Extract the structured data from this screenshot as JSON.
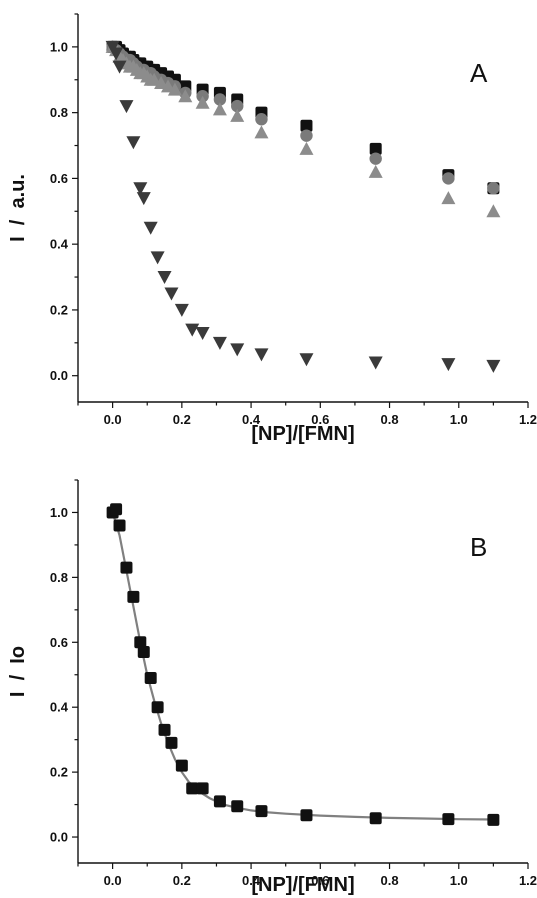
{
  "chart_data": [
    {
      "type": "scatter",
      "panel_label": "A",
      "xlabel": "[NP]/[FMN]",
      "ylabel": "I  /  a.u.",
      "xlim": [
        -0.1,
        1.2
      ],
      "ylim": [
        -0.08,
        1.1
      ],
      "xticks": [
        0.0,
        0.2,
        0.4,
        0.6,
        0.8,
        1.0,
        1.2
      ],
      "xtick_labels": [
        "0.0",
        "0.2",
        "0.4",
        "0.6",
        "0.8",
        "1.0",
        "1.2"
      ],
      "yticks": [
        0.0,
        0.2,
        0.4,
        0.6,
        0.8,
        1.0
      ],
      "ytick_labels": [
        "0.0",
        "0.2",
        "0.4",
        "0.6",
        "0.8",
        "1.0"
      ],
      "grid": false,
      "series": [
        {
          "marker": "square",
          "color": "#111111",
          "x": [
            0.0,
            0.01,
            0.02,
            0.03,
            0.04,
            0.05,
            0.06,
            0.07,
            0.08,
            0.09,
            0.1,
            0.11,
            0.12,
            0.14,
            0.16,
            0.18,
            0.21,
            0.26,
            0.31,
            0.36,
            0.43,
            0.56,
            0.76,
            0.97,
            1.1
          ],
          "y": [
            1.0,
            1.0,
            0.99,
            0.98,
            0.97,
            0.97,
            0.96,
            0.95,
            0.95,
            0.94,
            0.94,
            0.93,
            0.93,
            0.92,
            0.91,
            0.9,
            0.88,
            0.87,
            0.86,
            0.84,
            0.8,
            0.76,
            0.69,
            0.61,
            0.57
          ]
        },
        {
          "marker": "circle",
          "color": "#7a7a7a",
          "x": [
            0.0,
            0.01,
            0.02,
            0.03,
            0.04,
            0.05,
            0.06,
            0.07,
            0.08,
            0.09,
            0.1,
            0.11,
            0.12,
            0.14,
            0.16,
            0.18,
            0.21,
            0.26,
            0.31,
            0.36,
            0.43,
            0.56,
            0.76,
            0.97,
            1.1
          ],
          "y": [
            1.0,
            0.99,
            0.98,
            0.97,
            0.96,
            0.96,
            0.95,
            0.94,
            0.93,
            0.93,
            0.92,
            0.92,
            0.91,
            0.9,
            0.89,
            0.88,
            0.86,
            0.85,
            0.84,
            0.82,
            0.78,
            0.73,
            0.66,
            0.6,
            0.57
          ]
        },
        {
          "marker": "triangle-up",
          "color": "#8c8c8c",
          "x": [
            0.0,
            0.01,
            0.02,
            0.03,
            0.04,
            0.05,
            0.06,
            0.07,
            0.08,
            0.09,
            0.1,
            0.11,
            0.12,
            0.14,
            0.16,
            0.18,
            0.21,
            0.26,
            0.31,
            0.36,
            0.43,
            0.56,
            0.76,
            0.97,
            1.1
          ],
          "y": [
            1.0,
            0.99,
            0.97,
            0.96,
            0.95,
            0.94,
            0.94,
            0.93,
            0.92,
            0.92,
            0.91,
            0.9,
            0.9,
            0.89,
            0.88,
            0.87,
            0.85,
            0.83,
            0.81,
            0.79,
            0.74,
            0.69,
            0.62,
            0.54,
            0.5
          ]
        },
        {
          "marker": "triangle-down",
          "color": "#3a3a3a",
          "x": [
            0.0,
            0.01,
            0.02,
            0.04,
            0.06,
            0.08,
            0.09,
            0.11,
            0.13,
            0.15,
            0.17,
            0.2,
            0.23,
            0.26,
            0.31,
            0.36,
            0.43,
            0.56,
            0.76,
            0.97,
            1.1
          ],
          "y": [
            1.0,
            0.98,
            0.94,
            0.82,
            0.71,
            0.57,
            0.54,
            0.45,
            0.36,
            0.3,
            0.25,
            0.2,
            0.14,
            0.13,
            0.1,
            0.08,
            0.065,
            0.05,
            0.04,
            0.035,
            0.03
          ]
        }
      ]
    },
    {
      "type": "scatter",
      "panel_label": "B",
      "xlabel": "[NP]/[FMN]",
      "ylabel": "I  /  Io",
      "xlim": [
        -0.1,
        1.2
      ],
      "ylim": [
        -0.08,
        1.1
      ],
      "xticks": [
        0.0,
        0.2,
        0.4,
        0.6,
        0.8,
        1.0,
        1.2
      ],
      "xtick_labels": [
        "0.0",
        "0.2",
        "0.4",
        "0.6",
        "0.8",
        "1.0",
        "1.2"
      ],
      "yticks": [
        0.0,
        0.2,
        0.4,
        0.6,
        0.8,
        1.0
      ],
      "ytick_labels": [
        "0.0",
        "0.2",
        "0.4",
        "0.6",
        "0.8",
        "1.0"
      ],
      "grid": false,
      "series": [
        {
          "marker": "square",
          "color": "#111111",
          "x": [
            0.0,
            0.01,
            0.02,
            0.04,
            0.06,
            0.08,
            0.09,
            0.11,
            0.13,
            0.15,
            0.17,
            0.2,
            0.23,
            0.26,
            0.31,
            0.36,
            0.43,
            0.56,
            0.76,
            0.97,
            1.1
          ],
          "y": [
            1.0,
            1.01,
            0.96,
            0.83,
            0.74,
            0.6,
            0.57,
            0.49,
            0.4,
            0.33,
            0.29,
            0.22,
            0.15,
            0.15,
            0.11,
            0.095,
            0.08,
            0.067,
            0.058,
            0.055,
            0.053
          ]
        },
        {
          "type": "line",
          "color": "#808080",
          "x": [
            0.0,
            0.02,
            0.04,
            0.06,
            0.08,
            0.1,
            0.12,
            0.14,
            0.16,
            0.18,
            0.2,
            0.22,
            0.25,
            0.28,
            0.32,
            0.36,
            0.4,
            0.45,
            0.5,
            0.6,
            0.7,
            0.8,
            0.9,
            1.0,
            1.1
          ],
          "y": [
            1.0,
            0.93,
            0.82,
            0.71,
            0.6,
            0.5,
            0.42,
            0.35,
            0.29,
            0.24,
            0.2,
            0.17,
            0.14,
            0.12,
            0.1,
            0.09,
            0.082,
            0.076,
            0.072,
            0.066,
            0.062,
            0.059,
            0.057,
            0.055,
            0.054
          ]
        }
      ]
    }
  ]
}
